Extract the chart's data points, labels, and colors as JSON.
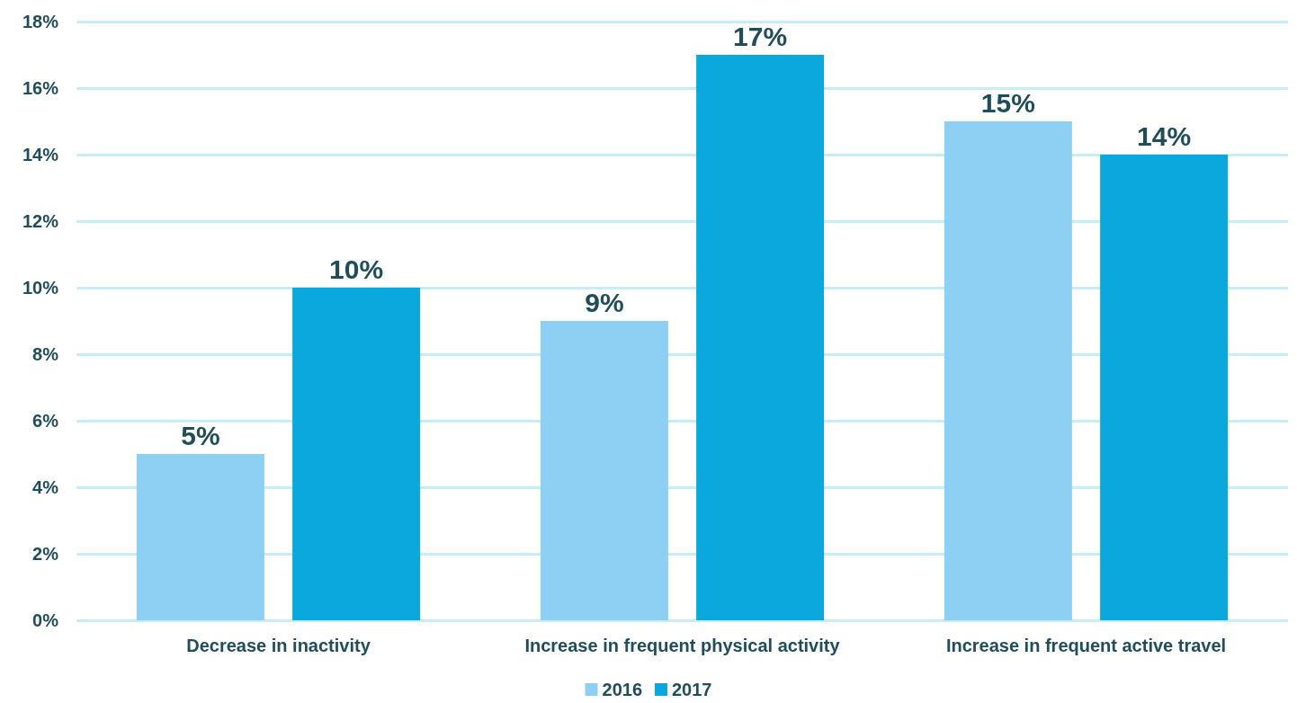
{
  "chart_data": {
    "type": "bar",
    "categories": [
      "Decrease in inactivity",
      "Increase in frequent physical activity",
      "Increase in frequent active travel"
    ],
    "series": [
      {
        "name": "2016",
        "color": "#8dd0f4",
        "values": [
          5,
          9,
          15
        ],
        "value_labels": [
          "5%",
          "9%",
          "15%"
        ]
      },
      {
        "name": "2017",
        "color": "#0aa8dc",
        "values": [
          10,
          17,
          14
        ],
        "value_labels": [
          "10%",
          "17%",
          "14%"
        ]
      }
    ],
    "ylim": [
      0,
      18
    ],
    "yticks": [
      {
        "value": 0,
        "label": "0%"
      },
      {
        "value": 2,
        "label": "2%"
      },
      {
        "value": 4,
        "label": "4%"
      },
      {
        "value": 6,
        "label": "6%"
      },
      {
        "value": 8,
        "label": "8%"
      },
      {
        "value": 10,
        "label": "10%"
      },
      {
        "value": 12,
        "label": "12%"
      },
      {
        "value": 14,
        "label": "14%"
      },
      {
        "value": 16,
        "label": "16%"
      },
      {
        "value": 18,
        "label": "18%"
      }
    ],
    "grid": "y",
    "legend": "bottom"
  }
}
